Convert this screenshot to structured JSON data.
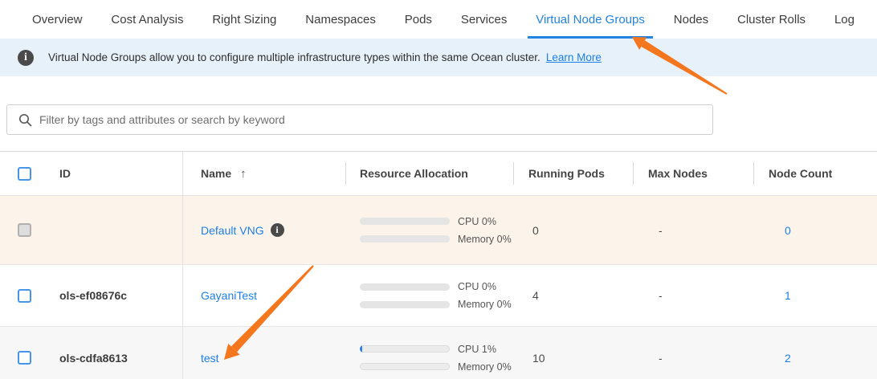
{
  "tabs": [
    {
      "label": "Overview",
      "active": false
    },
    {
      "label": "Cost Analysis",
      "active": false
    },
    {
      "label": "Right Sizing",
      "active": false
    },
    {
      "label": "Namespaces",
      "active": false
    },
    {
      "label": "Pods",
      "active": false
    },
    {
      "label": "Services",
      "active": false
    },
    {
      "label": "Virtual Node Groups",
      "active": true
    },
    {
      "label": "Nodes",
      "active": false
    },
    {
      "label": "Cluster Rolls",
      "active": false
    },
    {
      "label": "Log",
      "active": false
    }
  ],
  "banner": {
    "text": "Virtual Node Groups allow you to configure multiple infrastructure types within the same Ocean cluster.",
    "link_label": "Learn More"
  },
  "search": {
    "placeholder": "Filter by tags and attributes or search by keyword"
  },
  "icons": {
    "info": "i",
    "sort_asc": "↑"
  },
  "table": {
    "columns": [
      "ID",
      "Name",
      "Resource Allocation",
      "Running Pods",
      "Max Nodes",
      "Node Count"
    ],
    "sort": {
      "column": "Name",
      "direction": "asc"
    },
    "rows": [
      {
        "id": "",
        "name": "Default VNG",
        "cpu_label": "CPU 0%",
        "cpu_percent": 0,
        "memory_label": "Memory 0%",
        "memory_percent": 0,
        "running_pods": "0",
        "max_nodes": "-",
        "node_count": "0"
      },
      {
        "id": "ols-ef08676c",
        "name": "GayaniTest",
        "cpu_label": "CPU 0%",
        "cpu_percent": 0,
        "memory_label": "Memory 0%",
        "memory_percent": 0,
        "running_pods": "4",
        "max_nodes": "-",
        "node_count": "1"
      },
      {
        "id": "ols-cdfa8613",
        "name": "test",
        "cpu_label": "CPU 1%",
        "cpu_percent": 1,
        "memory_label": "Memory 0%",
        "memory_percent": 0,
        "running_pods": "10",
        "max_nodes": "-",
        "node_count": "2"
      }
    ]
  },
  "colors": {
    "accent": "#2283e2",
    "link": "#1d7fe8",
    "banner_bg": "#e7f1fa",
    "row_highlight": "#fcf4ea",
    "arrow": "#f4771e",
    "bar_fill": "#2d7ff0"
  }
}
